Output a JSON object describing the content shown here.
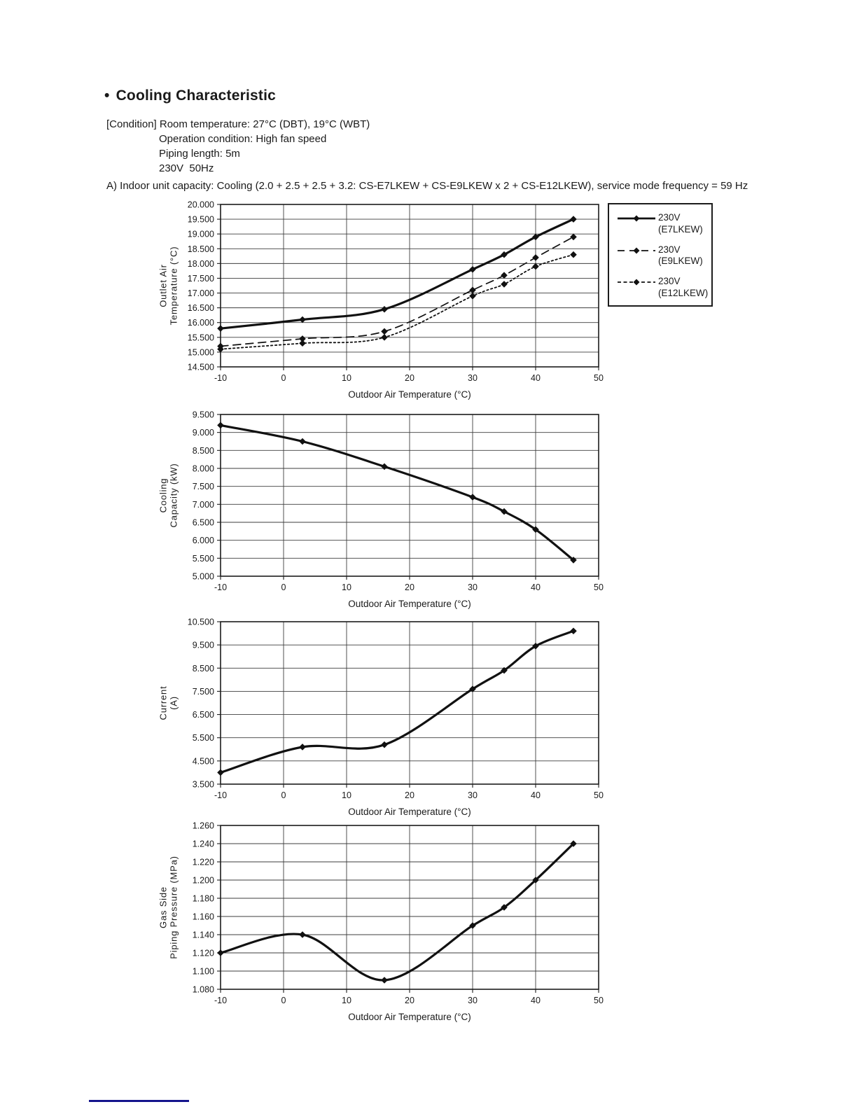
{
  "header": {
    "bullet": "•",
    "title": "Cooling Characteristic",
    "condition_first_line": "[Condition] Room temperature: 27°C (DBT), 19°C (WBT)",
    "condition_indented_lines": [
      "Operation condition: High fan speed",
      "Piping length: 5m",
      "230V  50Hz"
    ],
    "section_a": "A) Indoor unit capacity: Cooling (2.0 + 2.5 + 2.5 + 3.2: CS-E7LKEW + CS-E9LKEW x 2 + CS-E12LKEW), service mode frequency = 59 Hz"
  },
  "legend": {
    "position": "outside-right-of-first-chart",
    "entries": [
      {
        "line1": "230V",
        "line2": "(E7LKEW)",
        "style": "solid-thick"
      },
      {
        "line1": "230V",
        "line2": "(E9LKEW)",
        "style": "dashed"
      },
      {
        "line1": "230V",
        "line2": "(E12LKEW)",
        "style": "dotted"
      }
    ]
  },
  "colors": {
    "line": "#111111",
    "grid": "#3d3d3d",
    "border": "#1c1c1c",
    "text": "#1a1a1a",
    "footer_rule": "#14148c"
  },
  "chart_data": [
    {
      "type": "line",
      "title": "",
      "xlabel": "Outdoor Air Temperature (°C)",
      "ylabel_lines": [
        "Outlet Air",
        "Temperature (°C)"
      ],
      "grid": "on",
      "legend_position": "outside-right",
      "xlim": [
        -10,
        50
      ],
      "xticks": [
        -10,
        0,
        10,
        20,
        30,
        40,
        50
      ],
      "xtick_labels": [
        "-10",
        "0",
        "10",
        "20",
        "30",
        "40",
        "50"
      ],
      "ylim": [
        14.5,
        20.0
      ],
      "ystep": 0.5,
      "ytick_labels": [
        "20.000",
        "19.500",
        "19.000",
        "18.500",
        "18.000",
        "17.500",
        "17.000",
        "16.500",
        "16.000",
        "15.500",
        "15.000",
        "14.500"
      ],
      "x": [
        -10,
        3,
        16,
        30,
        35,
        40,
        46
      ],
      "series": [
        {
          "name": "230V (E7LKEW)",
          "style": "solid-thick",
          "values": [
            15.8,
            16.1,
            16.45,
            17.8,
            18.3,
            18.9,
            19.5
          ]
        },
        {
          "name": "230V (E9LKEW)",
          "style": "dashed",
          "values": [
            15.2,
            15.45,
            15.7,
            17.1,
            17.6,
            18.2,
            18.9
          ]
        },
        {
          "name": "230V (E12LKEW)",
          "style": "dotted",
          "values": [
            15.1,
            15.3,
            15.5,
            16.9,
            17.3,
            17.9,
            18.3
          ]
        }
      ]
    },
    {
      "type": "line",
      "title": "",
      "xlabel": "Outdoor Air Temperature (°C)",
      "ylabel_lines": [
        "Cooling",
        "Capacity (kW)"
      ],
      "grid": "on",
      "legend_position": "none",
      "xlim": [
        -10,
        50
      ],
      "xticks": [
        -10,
        0,
        10,
        20,
        30,
        40,
        50
      ],
      "xtick_labels": [
        "-10",
        "0",
        "10",
        "20",
        "30",
        "40",
        "50"
      ],
      "ylim": [
        5.0,
        9.5
      ],
      "ystep": 0.5,
      "ytick_labels": [
        "9.500",
        "9.000",
        "8.500",
        "8.000",
        "7.500",
        "7.000",
        "6.500",
        "6.000",
        "5.500",
        "5.000"
      ],
      "x": [
        -10,
        3,
        16,
        30,
        35,
        40,
        46
      ],
      "series": [
        {
          "name": "Cooling Capacity",
          "style": "solid-thick",
          "values": [
            9.2,
            8.75,
            8.05,
            7.2,
            6.8,
            6.3,
            5.45
          ]
        }
      ]
    },
    {
      "type": "line",
      "title": "",
      "xlabel": "Outdoor Air Temperature (°C)",
      "ylabel_lines": [
        "Current",
        "(A)"
      ],
      "grid": "on",
      "legend_position": "none",
      "xlim": [
        -10,
        50
      ],
      "xticks": [
        -10,
        0,
        10,
        20,
        30,
        40,
        50
      ],
      "xtick_labels": [
        "-10",
        "0",
        "10",
        "20",
        "30",
        "40",
        "50"
      ],
      "ylim": [
        3.5,
        10.5
      ],
      "ystep": 1.0,
      "ytick_labels": [
        "10.500",
        "9.500",
        "8.500",
        "7.500",
        "6.500",
        "5.500",
        "4.500",
        "3.500"
      ],
      "x": [
        -10,
        3,
        16,
        30,
        35,
        40,
        46
      ],
      "series": [
        {
          "name": "Current",
          "style": "solid-thick",
          "values": [
            4.0,
            5.1,
            5.2,
            7.6,
            8.4,
            9.45,
            10.1
          ]
        }
      ]
    },
    {
      "type": "line",
      "title": "",
      "xlabel": "Outdoor Air Temperature (°C)",
      "ylabel_lines": [
        "Gas Side",
        "Piping Pressure (MPa)"
      ],
      "grid": "on",
      "legend_position": "none",
      "xlim": [
        -10,
        50
      ],
      "xticks": [
        -10,
        0,
        10,
        20,
        30,
        40,
        50
      ],
      "xtick_labels": [
        "-10",
        "0",
        "10",
        "20",
        "30",
        "40",
        "50"
      ],
      "ylim": [
        1.08,
        1.26
      ],
      "ystep": 0.02,
      "ytick_labels": [
        "1.260",
        "1.240",
        "1.220",
        "1.200",
        "1.180",
        "1.160",
        "1.140",
        "1.120",
        "1.100",
        "1.080"
      ],
      "x": [
        -10,
        3,
        16,
        30,
        35,
        40,
        46
      ],
      "series": [
        {
          "name": "Gas Side Piping Pressure",
          "style": "solid-thick",
          "values": [
            1.12,
            1.14,
            1.09,
            1.15,
            1.17,
            1.2,
            1.24
          ]
        }
      ]
    }
  ]
}
